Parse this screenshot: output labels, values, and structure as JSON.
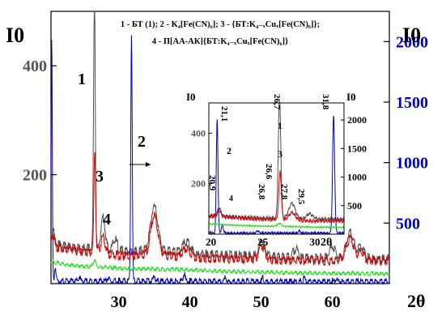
{
  "chart_data": [
    {
      "type": "line",
      "title_lines": [
        "1 - БТ (1); 2 - K₄[Fe(CN)₆]; 3 - {БТ:K₄₋ₓCuₓ[Fe(CN)₆]};",
        "4 - П[АА-АК]{БТ:K₄₋ₓCuₓ[Fe(CN)₆]}"
      ],
      "left_axis_label": "I0",
      "right_axis_label": "I0",
      "x_axis_label": "2θ",
      "xlim": [
        20.5,
        68
      ],
      "x_ticks": [
        "30",
        "40",
        "50",
        "60"
      ],
      "left_ylim": [
        0,
        500
      ],
      "left_ticks": [
        "200",
        "400"
      ],
      "right_ylim": [
        0,
        2250
      ],
      "right_ticks": [
        "500",
        "1000",
        "1500",
        "2000"
      ],
      "series": [
        {
          "name": "1",
          "color": "#505050",
          "axis": "left",
          "baseline": [
            [
              20.5,
              75
            ],
            [
              22,
              70
            ],
            [
              24,
              66
            ],
            [
              26,
              64
            ],
            [
              28,
              62
            ],
            [
              30,
              60
            ],
            [
              32,
              60
            ],
            [
              35,
              62
            ],
            [
              38,
              58
            ],
            [
              42,
              54
            ],
            [
              46,
              52
            ],
            [
              50,
              50
            ],
            [
              54,
              48
            ],
            [
              58,
              46
            ],
            [
              62,
              48
            ],
            [
              66,
              46
            ],
            [
              68,
              45
            ]
          ],
          "peaks": [
            [
              26.6,
              480,
              0.12
            ],
            [
              20.8,
              30,
              0.15
            ],
            [
              27.8,
              60,
              0.3
            ],
            [
              29.5,
              20,
              0.3
            ],
            [
              35,
              80,
              0.5
            ],
            [
              39.5,
              20,
              0.5
            ],
            [
              50.1,
              30,
              0.4
            ],
            [
              54.9,
              15,
              0.4
            ],
            [
              60,
              20,
              0.4
            ],
            [
              62.5,
              48,
              0.5
            ],
            [
              64,
              20,
              0.4
            ]
          ]
        },
        {
          "name": "2",
          "color": "#0000c8",
          "axis": "right",
          "baseline": [
            [
              20.5,
              20
            ],
            [
              30,
              20
            ],
            [
              40,
              18
            ],
            [
              50,
              16
            ],
            [
              60,
              15
            ],
            [
              68,
              15
            ]
          ],
          "peaks": [
            [
              20.6,
              2000,
              0.08
            ],
            [
              31.8,
              2050,
              0.1
            ],
            [
              21.1,
              120,
              0.1
            ],
            [
              24.5,
              40,
              0.1
            ],
            [
              28.5,
              35,
              0.1
            ],
            [
              35,
              60,
              0.1
            ],
            [
              39.2,
              70,
              0.12
            ],
            [
              45,
              40,
              0.1
            ],
            [
              50.2,
              30,
              0.1
            ],
            [
              56,
              35,
              0.1
            ],
            [
              60.5,
              30,
              0.1
            ]
          ]
        },
        {
          "name": "3",
          "color": "#e00000",
          "axis": "left",
          "baseline": [
            [
              20.5,
              70
            ],
            [
              22,
              65
            ],
            [
              24,
              60
            ],
            [
              26,
              58
            ],
            [
              28,
              55
            ],
            [
              30,
              52
            ],
            [
              32,
              52
            ],
            [
              35,
              54
            ],
            [
              38,
              50
            ],
            [
              42,
              47
            ],
            [
              46,
              46
            ],
            [
              50,
              45
            ],
            [
              54,
              43
            ],
            [
              58,
              42
            ],
            [
              62,
              44
            ],
            [
              66,
              42
            ],
            [
              68,
              42
            ]
          ],
          "peaks": [
            [
              26.65,
              190,
              0.12
            ],
            [
              20.8,
              25,
              0.15
            ],
            [
              27.8,
              30,
              0.3
            ],
            [
              35,
              70,
              0.5
            ],
            [
              39.5,
              15,
              0.5
            ],
            [
              50.1,
              25,
              0.4
            ],
            [
              62.5,
              40,
              0.5
            ],
            [
              64,
              15,
              0.4
            ]
          ]
        },
        {
          "name": "4",
          "color": "#20e020",
          "axis": "left",
          "baseline": [
            [
              20.5,
              40
            ],
            [
              22,
              36
            ],
            [
              24,
              33
            ],
            [
              26,
              31
            ],
            [
              28,
              30
            ],
            [
              30,
              28
            ],
            [
              32,
              27
            ],
            [
              35,
              27
            ],
            [
              38,
              26
            ],
            [
              42,
              24
            ],
            [
              46,
              22
            ],
            [
              50,
              21
            ],
            [
              54,
              20
            ],
            [
              58,
              19
            ],
            [
              62,
              19
            ],
            [
              66,
              18
            ],
            [
              68,
              18
            ]
          ],
          "peaks": [
            [
              26.6,
              12,
              0.2
            ]
          ]
        }
      ],
      "inset": {
        "left_axis_label": "I0",
        "right_axis_label": "I0",
        "x_axis_label": "2θ",
        "xlim": [
          19.8,
          32.8
        ],
        "x_ticks": [
          "20",
          "25",
          "30"
        ],
        "left_ylim": [
          0,
          520
        ],
        "left_ticks": [
          "200",
          "400"
        ],
        "right_ylim": [
          0,
          2300
        ],
        "right_ticks": [
          "500",
          "1000",
          "1500",
          "2000"
        ],
        "peak_labels": [
          "21,1",
          "26,7",
          "31,8",
          "20,9",
          "26,6",
          "26,8",
          "27,8",
          "29,5"
        ],
        "curve_labels": [
          "1",
          "2",
          "3",
          "4"
        ]
      }
    }
  ]
}
